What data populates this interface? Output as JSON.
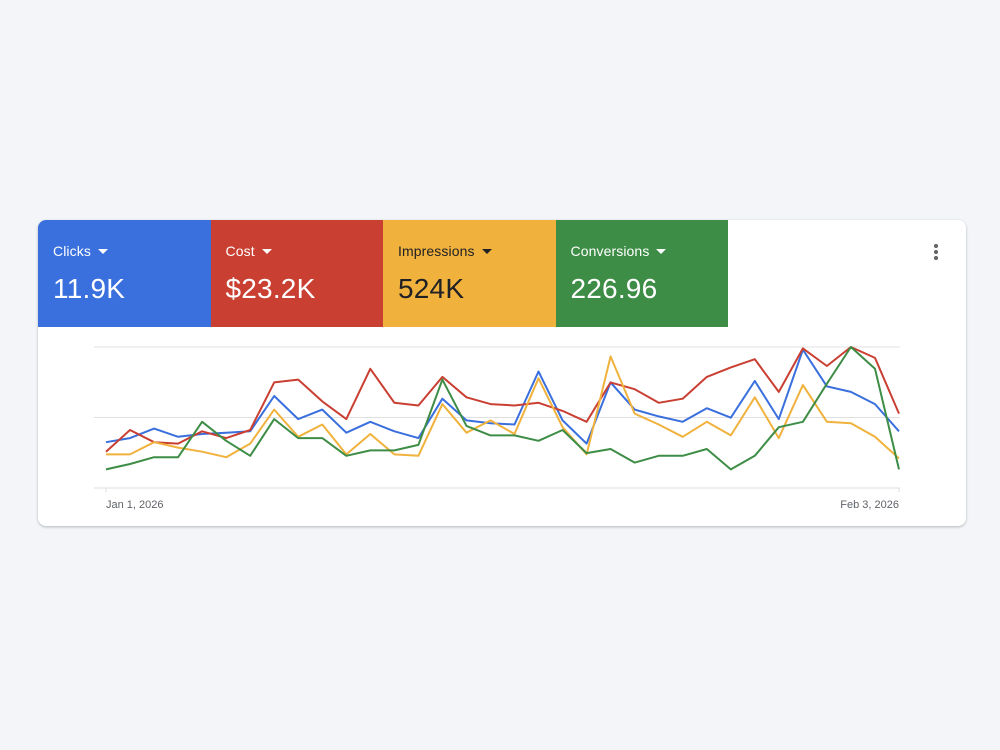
{
  "tiles": [
    {
      "label": "Clicks",
      "value": "11.9K",
      "color": "#3a6fde"
    },
    {
      "label": "Cost",
      "value": "$23.2K",
      "color": "#c93f32"
    },
    {
      "label": "Impressions",
      "value": "524K",
      "color": "#f0b23d"
    },
    {
      "label": "Conversions",
      "value": "226.96",
      "color": "#3e8d46"
    }
  ],
  "menu": {
    "icon": "more-vert-icon"
  },
  "chart_data": {
    "type": "line",
    "x_start_label": "Jan 1, 2026",
    "x_end_label": "Feb 3, 2026",
    "ylim": [
      0,
      100
    ],
    "grid": true,
    "series": [
      {
        "color": "#3a6fde",
        "values": [
          30,
          33,
          40,
          34,
          36,
          37,
          38,
          64,
          47,
          54,
          37,
          45,
          38,
          33,
          62,
          46,
          44,
          43,
          82,
          46,
          29,
          74,
          54,
          49,
          45,
          55,
          48,
          75,
          47,
          98,
          71,
          67,
          58,
          38
        ]
      },
      {
        "color": "#c93f32",
        "values": [
          23,
          39,
          30,
          29,
          38,
          33,
          39,
          74,
          76,
          60,
          47,
          84,
          59,
          57,
          78,
          63,
          58,
          57,
          59,
          53,
          45,
          74,
          69,
          59,
          62,
          78,
          85,
          91,
          67,
          99,
          86,
          100,
          92,
          51
        ]
      },
      {
        "color": "#f0b23d",
        "values": [
          21,
          21,
          30,
          26,
          23,
          19,
          29,
          54,
          34,
          43,
          21,
          36,
          21,
          20,
          58,
          37,
          46,
          36,
          77,
          41,
          21,
          93,
          51,
          43,
          34,
          45,
          35,
          63,
          33,
          72,
          45,
          44,
          34,
          18
        ]
      },
      {
        "color": "#3e8d46",
        "values": [
          10,
          14,
          19,
          19,
          45,
          31,
          20,
          47,
          33,
          33,
          20,
          24,
          24,
          28,
          76,
          42,
          35,
          35,
          31,
          39,
          22,
          25,
          15,
          20,
          20,
          25,
          10,
          20,
          41,
          45,
          73,
          100,
          84,
          10
        ]
      }
    ]
  }
}
